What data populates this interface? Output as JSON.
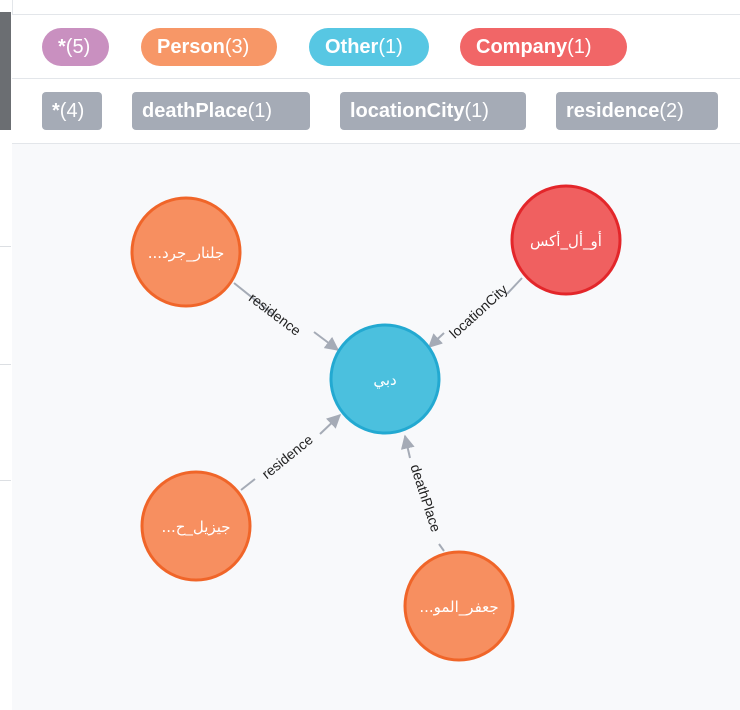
{
  "labels_bar": {
    "items": [
      {
        "name": "*",
        "count": "(5)",
        "color": "#c990c0"
      },
      {
        "name": "Person",
        "count": "(3)",
        "color": "#f79767"
      },
      {
        "name": "Other",
        "count": "(1)",
        "color": "#57c7e3"
      },
      {
        "name": "Company",
        "count": "(1)",
        "color": "#f16667"
      }
    ]
  },
  "relationships_bar": {
    "items": [
      {
        "name": "*",
        "count": "(4)"
      },
      {
        "name": "deathPlace",
        "count": "(1)"
      },
      {
        "name": "locationCity",
        "count": "(1)"
      },
      {
        "name": "residence",
        "count": "(2)"
      }
    ],
    "color": "#a5abb6"
  },
  "graph": {
    "nodes": [
      {
        "id": "dubai",
        "label": "دبي",
        "type": "Other",
        "fill": "#4bc0de",
        "stroke": "#23a9d1"
      },
      {
        "id": "jalnar",
        "label": "جلنار_جرد...",
        "type": "Person",
        "fill": "#f78f60",
        "stroke": "#f06529"
      },
      {
        "id": "company",
        "label": "أو_أل_أكس",
        "type": "Company",
        "fill": "#f06060",
        "stroke": "#e3262a"
      },
      {
        "id": "jiziel",
        "label": "جيزيل_ح...",
        "type": "Person",
        "fill": "#f78f60",
        "stroke": "#f06529"
      },
      {
        "id": "jaafar",
        "label": "جعفر_المو...",
        "type": "Person",
        "fill": "#f78f60",
        "stroke": "#f06529"
      }
    ],
    "edges": [
      {
        "from": "jalnar",
        "to": "dubai",
        "label": "residence"
      },
      {
        "from": "company",
        "to": "dubai",
        "label": "locationCity"
      },
      {
        "from": "jiziel",
        "to": "dubai",
        "label": "residence"
      },
      {
        "from": "jaafar",
        "to": "dubai",
        "label": "deathPlace"
      }
    ]
  }
}
